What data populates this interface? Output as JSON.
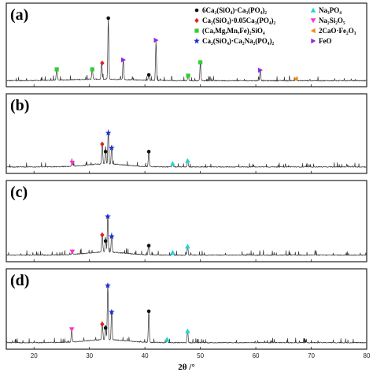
{
  "chart_data": {
    "type": "line",
    "xlabel": "2θ /°",
    "xlim": [
      15,
      80
    ],
    "x_ticks": [
      "20",
      "30",
      "40",
      "50",
      "60",
      "70",
      "80"
    ],
    "y_ticks": "none",
    "legend_position": "inside top-right of panel (a)",
    "legend": [
      {
        "key": "c2sc3p",
        "label": "6Ca₂(SiO₄)·Ca₃(PO₄)₂",
        "marker": "circle",
        "color": "#111111"
      },
      {
        "key": "na3po4",
        "label": "Na₃PO₄",
        "marker": "triangle-up",
        "color": "#27d3d3"
      },
      {
        "key": "c2s005",
        "label": "Ca₂(SiO₄)·0.05Ca₃(PO₄)₂",
        "marker": "diamond",
        "color": "#e02020"
      },
      {
        "key": "na2si2o5",
        "label": "Na₂Si₂O₅",
        "marker": "triangle-down",
        "color": "#ff33cc"
      },
      {
        "key": "olivine",
        "label": "(Ca,Mg,Mn,Fe)₂SiO₄",
        "marker": "square",
        "color": "#33cc33"
      },
      {
        "key": "c2f",
        "label": "2CaO·Fe₂O₃",
        "marker": "triangle-left",
        "color": "#f08a1c"
      },
      {
        "key": "c2scnp",
        "label": "Ca₂(SiO₄)·Ca₂Na₂(PO₄)₂",
        "marker": "star",
        "color": "#1a2fd6"
      },
      {
        "key": "feo",
        "label": "FeO",
        "marker": "triangle-right",
        "color": "#8a2be2"
      }
    ],
    "panels": [
      {
        "label": "(a)",
        "peaks": [
          {
            "x": 24.1,
            "h": 0.16
          },
          {
            "x": 30.5,
            "h": 0.16
          },
          {
            "x": 32.2,
            "h": 0.22
          },
          {
            "x": 33.4,
            "h": 0.78
          },
          {
            "x": 36.1,
            "h": 0.25
          },
          {
            "x": 40.7,
            "h": 0.09
          },
          {
            "x": 42.0,
            "h": 0.5
          },
          {
            "x": 47.8,
            "h": 0.08
          },
          {
            "x": 50.0,
            "h": 0.24
          },
          {
            "x": 60.8,
            "h": 0.14
          },
          {
            "x": 67.2,
            "h": 0.03
          }
        ],
        "markers": [
          {
            "type": "olivine",
            "x": 24.1,
            "y": 0.2
          },
          {
            "type": "olivine",
            "x": 30.5,
            "y": 0.2
          },
          {
            "type": "c2s005",
            "x": 32.3,
            "y": 0.28
          },
          {
            "type": "c2sc3p",
            "x": 33.4,
            "y": 0.85
          },
          {
            "type": "feo",
            "x": 36.1,
            "y": 0.32
          },
          {
            "type": "c2sc3p",
            "x": 40.7,
            "y": 0.13
          },
          {
            "type": "feo",
            "x": 42.0,
            "y": 0.57
          },
          {
            "type": "olivine",
            "x": 47.8,
            "y": 0.12
          },
          {
            "type": "olivine",
            "x": 50.0,
            "y": 0.29
          },
          {
            "type": "feo",
            "x": 60.8,
            "y": 0.19
          },
          {
            "type": "c2f",
            "x": 67.2,
            "y": 0.08
          }
        ]
      },
      {
        "label": "(b)",
        "peaks": [
          {
            "x": 26.9,
            "h": 0.07
          },
          {
            "x": 32.3,
            "h": 0.3
          },
          {
            "x": 32.9,
            "h": 0.22
          },
          {
            "x": 33.4,
            "h": 0.46
          },
          {
            "x": 34.0,
            "h": 0.25
          },
          {
            "x": 40.7,
            "h": 0.22
          },
          {
            "x": 45.0,
            "h": 0.06
          },
          {
            "x": 47.7,
            "h": 0.09
          }
        ],
        "markers": [
          {
            "type": "na2si2o5",
            "x": 26.9,
            "y": 0.12
          },
          {
            "type": "c2s005",
            "x": 32.3,
            "y": 0.37
          },
          {
            "type": "c2sc3p",
            "x": 32.9,
            "y": 0.27
          },
          {
            "type": "c2scnp",
            "x": 33.4,
            "y": 0.52
          },
          {
            "type": "c2scnp",
            "x": 34.0,
            "y": 0.32
          },
          {
            "type": "c2sc3p",
            "x": 40.7,
            "y": 0.27
          },
          {
            "type": "na3po4",
            "x": 45.0,
            "y": 0.11
          },
          {
            "type": "na3po4",
            "x": 47.7,
            "y": 0.15
          }
        ]
      },
      {
        "label": "(c)",
        "peaks": [
          {
            "x": 26.9,
            "h": 0.06
          },
          {
            "x": 32.3,
            "h": 0.27
          },
          {
            "x": 32.9,
            "h": 0.2
          },
          {
            "x": 33.3,
            "h": 0.5
          },
          {
            "x": 34.0,
            "h": 0.25
          },
          {
            "x": 40.7,
            "h": 0.14
          },
          {
            "x": 45.0,
            "h": 0.05
          },
          {
            "x": 47.7,
            "h": 0.12
          }
        ],
        "markers": [
          {
            "type": "na2si2o5",
            "x": 26.9,
            "y": 0.11
          },
          {
            "type": "c2s005",
            "x": 32.3,
            "y": 0.33
          },
          {
            "type": "c2sc3p",
            "x": 32.9,
            "y": 0.25
          },
          {
            "type": "c2scnp",
            "x": 33.3,
            "y": 0.57
          },
          {
            "type": "c2scnp",
            "x": 34.0,
            "y": 0.31
          },
          {
            "type": "c2sc3p",
            "x": 40.7,
            "y": 0.19
          },
          {
            "type": "na3po4",
            "x": 45.0,
            "y": 0.1
          },
          {
            "type": "na3po4",
            "x": 47.7,
            "y": 0.18
          }
        ]
      },
      {
        "label": "(d)",
        "peaks": [
          {
            "x": 26.8,
            "h": 0.18
          },
          {
            "x": 32.3,
            "h": 0.25
          },
          {
            "x": 32.9,
            "h": 0.2
          },
          {
            "x": 33.3,
            "h": 0.75
          },
          {
            "x": 34.0,
            "h": 0.4
          },
          {
            "x": 40.7,
            "h": 0.42
          },
          {
            "x": 44.0,
            "h": 0.06
          },
          {
            "x": 47.7,
            "h": 0.17
          }
        ],
        "markers": [
          {
            "type": "na2si2o5",
            "x": 26.8,
            "y": 0.24
          },
          {
            "type": "c2s005",
            "x": 32.3,
            "y": 0.31
          },
          {
            "type": "c2sc3p",
            "x": 32.9,
            "y": 0.26
          },
          {
            "type": "c2scnp",
            "x": 33.3,
            "y": 0.82
          },
          {
            "type": "c2scnp",
            "x": 34.0,
            "y": 0.47
          },
          {
            "type": "c2sc3p",
            "x": 40.7,
            "y": 0.48
          },
          {
            "type": "na3po4",
            "x": 44.0,
            "y": 0.11
          },
          {
            "type": "na3po4",
            "x": 47.7,
            "y": 0.22
          }
        ]
      }
    ]
  }
}
